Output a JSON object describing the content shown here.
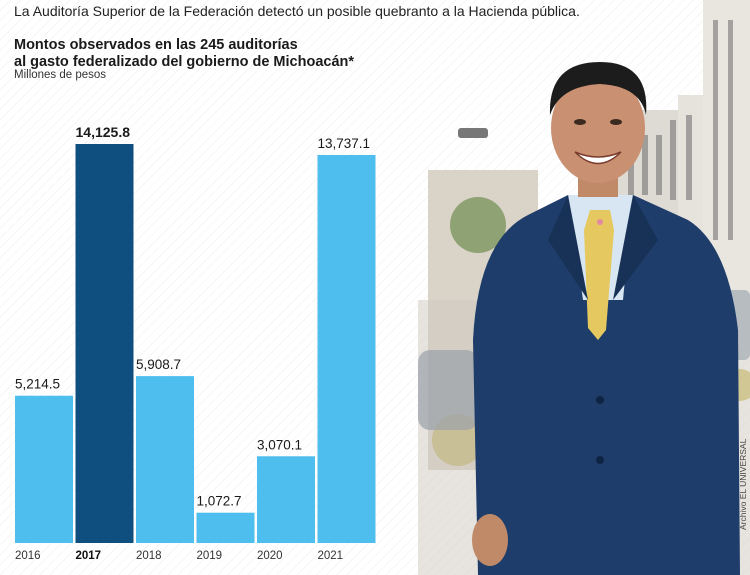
{
  "lede": "La Auditoría Superior de la Federación detectó un posible quebranto a la Hacienda pública.",
  "title_line1": "Montos observados en las 245 auditorías",
  "title_line2": "al gasto federalizado del gobierno de Michoacán*",
  "unit": "Millones de pesos",
  "photo_credit": "Archivo EL UNIVERSAL",
  "colors": {
    "bar": "#4dbeee",
    "bar_highlight": "#0f4f80",
    "suit": "#1f3d6a",
    "tie": "#e5c960",
    "building": "#e9e6e0"
  },
  "chart_data": {
    "type": "bar",
    "title": "Montos observados en las 245 auditorías al gasto federalizado del gobierno de Michoacán*",
    "ylabel": "Millones de pesos",
    "categories": [
      "2016",
      "2017",
      "2018",
      "2019",
      "2020",
      "2021"
    ],
    "values": [
      5214.5,
      14125.8,
      5908.7,
      1072.7,
      3070.1,
      13737.1
    ],
    "value_labels": [
      "5,214.5",
      "14,125.8",
      "5,908.7",
      "1,072.7",
      "3,070.1",
      "13,737.1"
    ],
    "highlight": "2017",
    "ylim": [
      0,
      14125.8
    ],
    "grid": false,
    "legend": "none"
  }
}
